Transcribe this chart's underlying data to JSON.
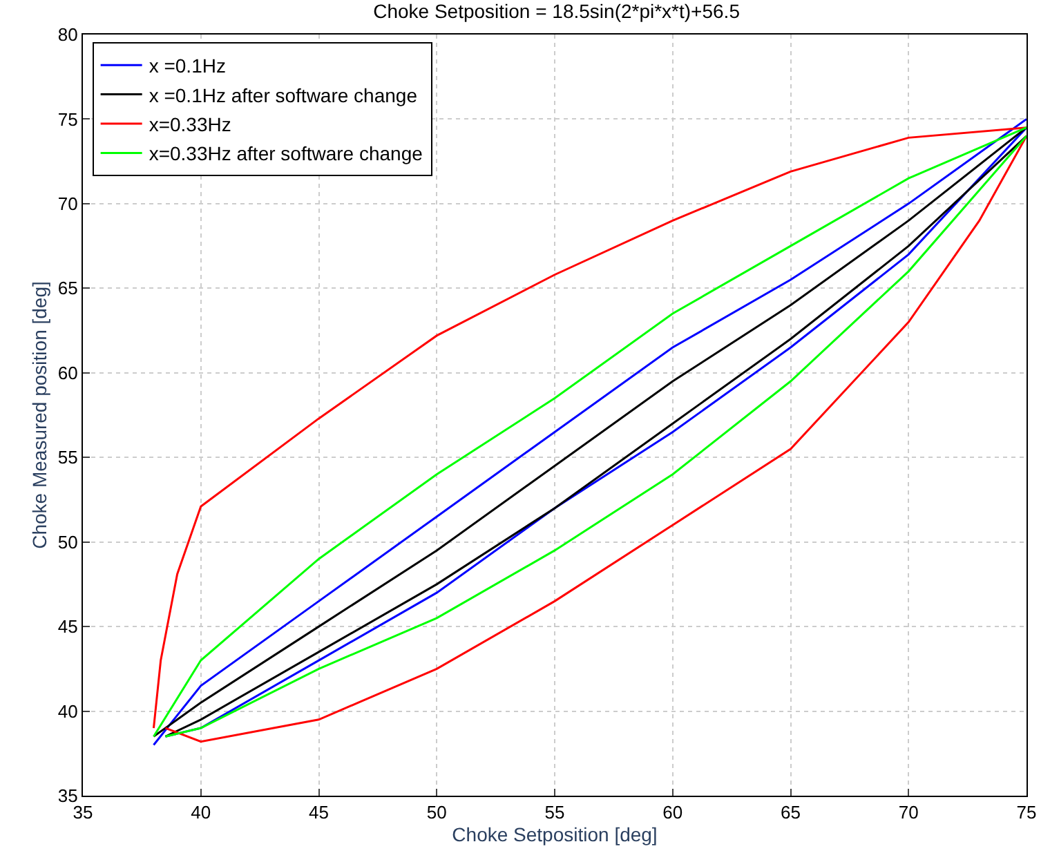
{
  "chart_data": {
    "type": "line",
    "title": "Choke Setposition = 18.5sin(2*pi*x*t)+56.5",
    "xlabel": "Choke Setposition [deg]",
    "ylabel": "Choke Measured position [deg]",
    "xlim": [
      35,
      75
    ],
    "xticks": [
      35,
      40,
      45,
      50,
      55,
      60,
      65,
      70,
      75
    ],
    "ylim": [
      35,
      80
    ],
    "yticks": [
      35,
      40,
      45,
      50,
      55,
      60,
      65,
      70,
      75,
      80
    ],
    "grid": true,
    "legend": "top left",
    "marker": "none",
    "line_style": "solid",
    "series": [
      {
        "name": "x =0.1Hz",
        "color": "#0000ff",
        "x": [
          38,
          40,
          45,
          50,
          55,
          60,
          65,
          70,
          75
        ],
        "values": [
          38,
          41.5,
          46.5,
          51.5,
          56.5,
          61.5,
          65.5,
          70,
          75
        ]
      },
      {
        "color": "#0000ff",
        "x": [
          38.5,
          40,
          45,
          50,
          55,
          60,
          65,
          70,
          75
        ],
        "values": [
          38.5,
          39,
          43,
          47,
          52,
          56.5,
          61.5,
          67,
          74.5
        ]
      },
      {
        "name": "x =0.1Hz after software change",
        "color": "#000000",
        "x": [
          38,
          40,
          45,
          50,
          55,
          60,
          65,
          70,
          75
        ],
        "values": [
          38.5,
          40.5,
          45,
          49.5,
          54.5,
          59.5,
          64,
          69,
          74.5
        ]
      },
      {
        "color": "#000000",
        "x": [
          38.5,
          40,
          45,
          50,
          55,
          60,
          65,
          70,
          75
        ],
        "values": [
          38.5,
          39.5,
          43.5,
          47.5,
          52,
          57,
          62,
          67.5,
          74
        ]
      },
      {
        "name": "x=0.33Hz",
        "color": "#ff0000",
        "x": [
          38,
          38.3,
          39,
          40,
          45,
          50,
          55,
          60,
          65,
          70,
          75
        ],
        "values": [
          39,
          43,
          48.1,
          52.1,
          57.3,
          62.2,
          65.8,
          69,
          71.9,
          73.9,
          74.5
        ]
      },
      {
        "color": "#ff0000",
        "x": [
          38.5,
          40,
          45,
          50,
          55,
          60,
          65,
          70,
          73,
          75
        ],
        "values": [
          39,
          38.2,
          39.5,
          42.5,
          46.5,
          51,
          55.5,
          63,
          69,
          74
        ]
      },
      {
        "name": "x=0.33Hz after software change",
        "color": "#00ff00",
        "x": [
          38,
          40,
          45,
          50,
          55,
          60,
          65,
          70,
          75
        ],
        "values": [
          38.5,
          43,
          49,
          54,
          58.5,
          63.5,
          67.5,
          71.5,
          74.5
        ]
      },
      {
        "color": "#00ff00",
        "x": [
          38.5,
          40,
          45,
          50,
          55,
          60,
          65,
          70,
          75
        ],
        "values": [
          38.5,
          39,
          42.5,
          45.5,
          49.5,
          54,
          59.5,
          66,
          74
        ]
      }
    ]
  }
}
